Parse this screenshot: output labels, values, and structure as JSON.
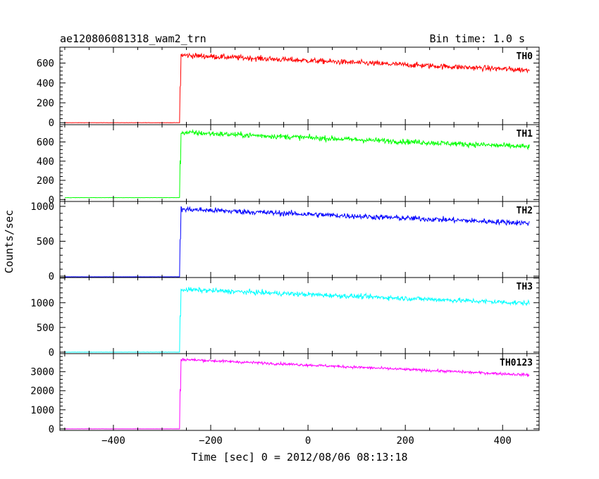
{
  "header": {
    "title": "ae120806081318_wam2_trn",
    "bin_time": "Bin time: 1.0 s"
  },
  "chart_data": {
    "type": "line",
    "xlabel": "Time [sec] 0 = 2012/08/06 08:13:18",
    "ylabel": "Counts/sec",
    "xlim": [
      -510,
      475
    ],
    "xticks": [
      -400,
      -200,
      0,
      200,
      400
    ],
    "xtick_labels": [
      "−400",
      "−200",
      "0",
      "200",
      "400"
    ],
    "x_range": [
      -500,
      455
    ],
    "onset_time": -263,
    "bin_time_s": 1.0,
    "panels": [
      {
        "name": "TH0",
        "color": "#ff0000",
        "ylim": [
          -20,
          760
        ],
        "yticks": [
          0,
          200,
          400,
          600
        ],
        "pre_level": 0,
        "post_start": 680,
        "post_end": 530,
        "noise": 28
      },
      {
        "name": "TH1",
        "color": "#00ff00",
        "ylim": [
          -20,
          780
        ],
        "yticks": [
          0,
          200,
          400,
          600
        ],
        "pre_level": 20,
        "post_start": 700,
        "post_end": 550,
        "noise": 28
      },
      {
        "name": "TH2",
        "color": "#0000ff",
        "ylim": [
          -20,
          1070
        ],
        "yticks": [
          0,
          500,
          1000
        ],
        "pre_level": -10,
        "post_start": 960,
        "post_end": 760,
        "noise": 40
      },
      {
        "name": "TH3",
        "color": "#00ffff",
        "ylim": [
          -30,
          1510
        ],
        "yticks": [
          0,
          500,
          1000
        ],
        "pre_level": 0,
        "post_start": 1270,
        "post_end": 990,
        "noise": 50
      },
      {
        "name": "TH0123",
        "color": "#ff00ff",
        "ylim": [
          -80,
          3950
        ],
        "yticks": [
          0,
          1000,
          2000,
          3000
        ],
        "pre_level": 0,
        "post_start": 3650,
        "post_end": 2830,
        "noise": 70
      }
    ]
  }
}
